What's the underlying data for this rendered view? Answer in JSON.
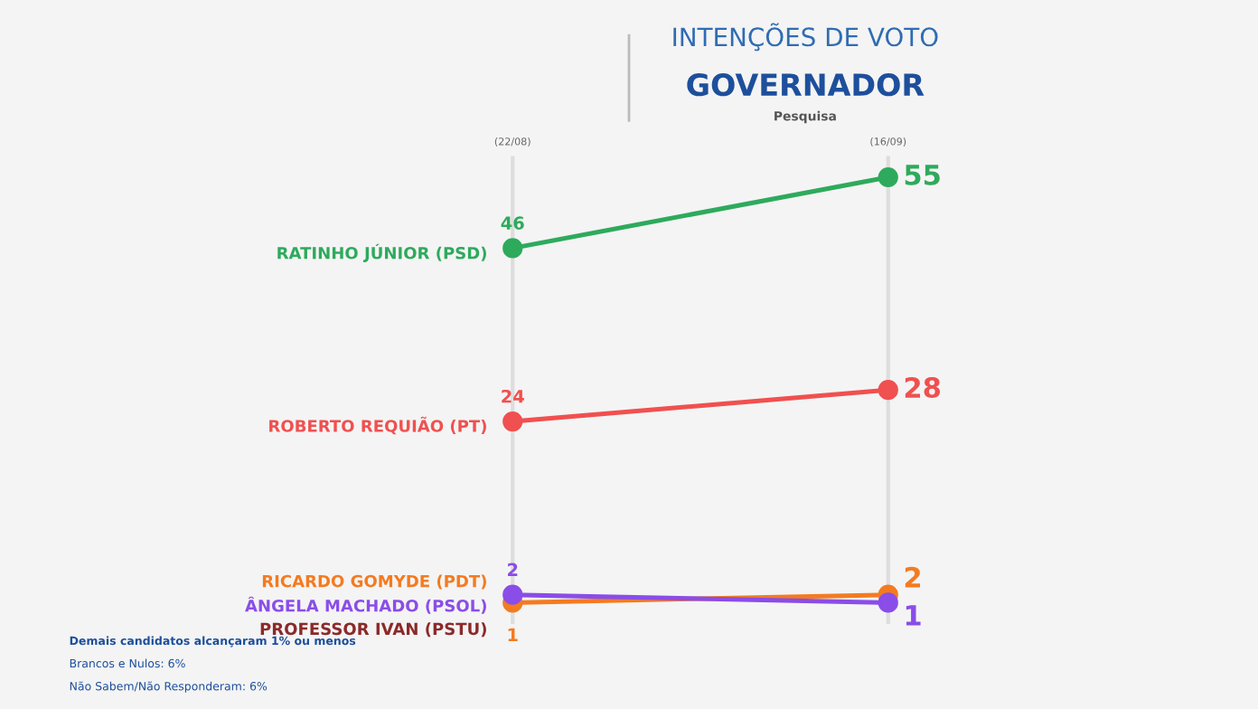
{
  "chart_data": {
    "type": "line",
    "title": "INTENÇÕES DE VOTO",
    "subtitle": "GOVERNADOR\nPesquisa",
    "categories": [
      "(22/08)",
      "(16/09)"
    ],
    "series": [
      {
        "name": "RATINHO JÚNIOR (PSD)",
        "color": "#2eaa5c",
        "values": [
          46,
          55
        ]
      },
      {
        "name": "ROBERTO REQUIÃO (PT)",
        "color": "#f0504f",
        "values": [
          24,
          28
        ]
      },
      {
        "name": "RICARDO GOMYDE (PDT)",
        "color": "#f47b20",
        "values": [
          1,
          2
        ]
      },
      {
        "name": "ÂNGELA MACHADO (PSOL)",
        "color": "#8a4de8",
        "values": [
          2,
          1
        ]
      },
      {
        "name": "PROFESSOR IVAN (PSTU)",
        "color": "#8b2a2a",
        "values": [
          null,
          null
        ]
      }
    ],
    "data_labels": true,
    "marker": "circle",
    "grid": "x",
    "legend": false,
    "annotations": [
      "Demais candidatos alcançaram 1% ou menos",
      "Brancos e Nulos: 6%",
      "Não Sabem/Não Responderam: 6%"
    ]
  }
}
